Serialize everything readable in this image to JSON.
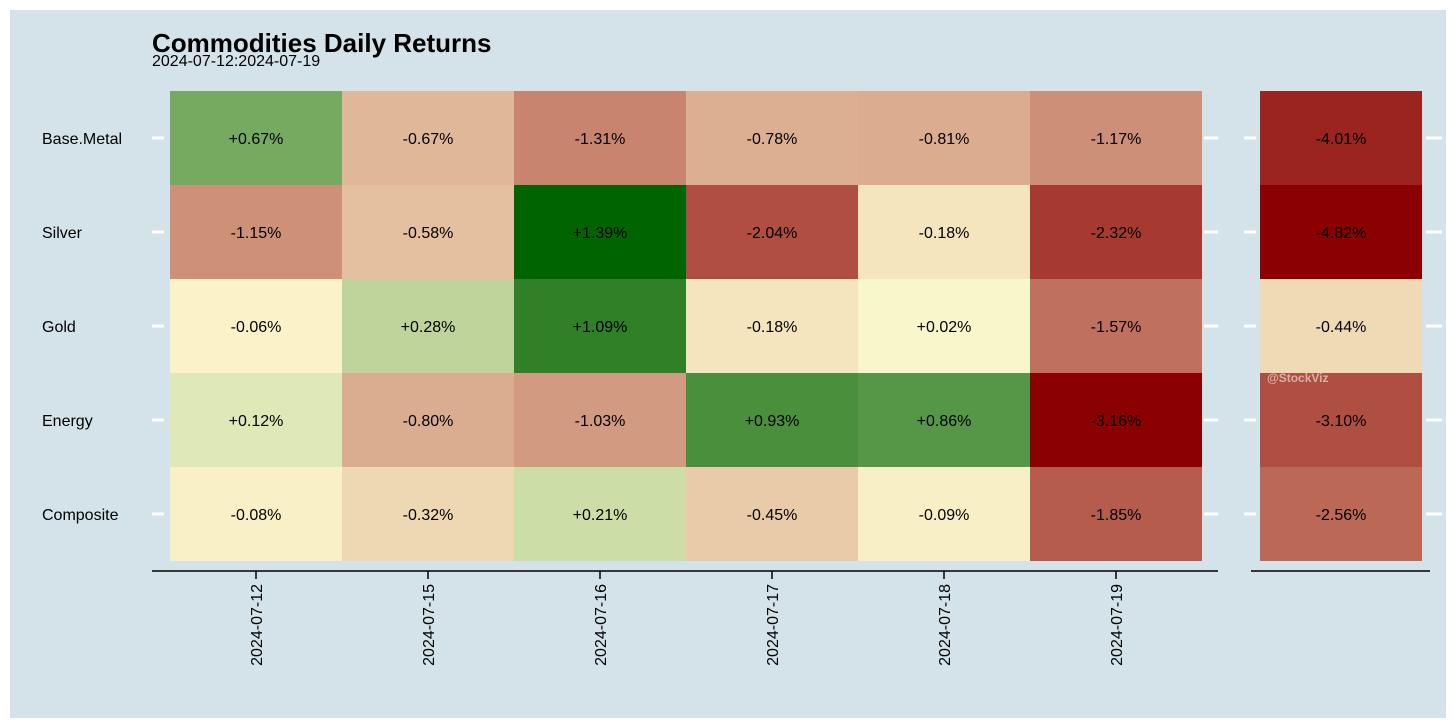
{
  "title": "Commodities Daily Returns",
  "subtitle": "2024-07-12:2024-07-19",
  "watermark": "@StockViz",
  "colors": {
    "panel_background": "#d4e3ea",
    "positive_max": "#006400",
    "neutral": "#fffbd1",
    "negative_max": "#8b0000"
  },
  "chart_data": [
    {
      "type": "heatmap",
      "title": "Commodities Daily Returns",
      "subtitle": "2024-07-12:2024-07-19",
      "x": [
        "2024-07-12",
        "2024-07-15",
        "2024-07-16",
        "2024-07-17",
        "2024-07-18",
        "2024-07-19"
      ],
      "y": [
        "Base.Metal",
        "Silver",
        "Gold",
        "Energy",
        "Composite"
      ],
      "values": [
        [
          0.67,
          -0.67,
          -1.31,
          -0.78,
          -0.81,
          -1.17
        ],
        [
          -1.15,
          -0.58,
          1.39,
          -2.04,
          -0.18,
          -2.32
        ],
        [
          -0.06,
          0.28,
          1.09,
          -0.18,
          0.02,
          -1.57
        ],
        [
          0.12,
          -0.8,
          -1.03,
          0.93,
          0.86,
          -3.16
        ],
        [
          -0.08,
          -0.32,
          0.21,
          -0.45,
          -0.09,
          -1.85
        ]
      ],
      "labels": [
        [
          "+0.67%",
          "-0.67%",
          "-1.31%",
          "-0.78%",
          "-0.81%",
          "-1.17%"
        ],
        [
          "-1.15%",
          "-0.58%",
          "+1.39%",
          "-2.04%",
          "-0.18%",
          "-2.32%"
        ],
        [
          "-0.06%",
          "+0.28%",
          "+1.09%",
          "-0.18%",
          "+0.02%",
          "-1.57%"
        ],
        [
          "+0.12%",
          "-0.80%",
          "-1.03%",
          "+0.93%",
          "+0.86%",
          "-3.16%"
        ],
        [
          "-0.08%",
          "-0.32%",
          "+0.21%",
          "-0.45%",
          "-0.09%",
          "-1.85%"
        ]
      ],
      "color_scale": {
        "low": "#8b0000",
        "mid": "#fffbd1",
        "high": "#006400"
      },
      "grid": false
    },
    {
      "type": "heatmap",
      "y": [
        "Base.Metal",
        "Silver",
        "Gold",
        "Energy",
        "Composite"
      ],
      "values": [
        -4.01,
        -4.82,
        -0.44,
        -3.1,
        -2.56
      ],
      "labels": [
        "-4.01%",
        "-4.82%",
        "-0.44%",
        "-3.10%",
        "-2.56%"
      ],
      "color_scale": {
        "low": "#8b0000",
        "mid": "#fffbd1",
        "high": "#006400"
      },
      "grid": false
    }
  ]
}
